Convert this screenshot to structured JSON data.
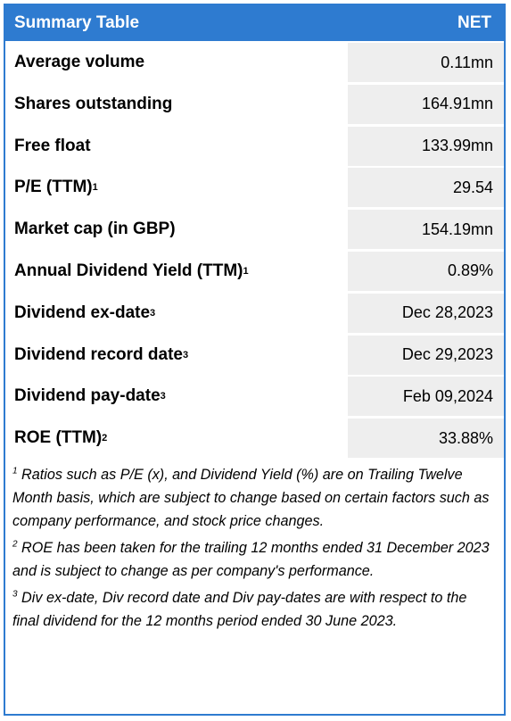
{
  "header": {
    "title": "Summary Table",
    "ticker": "NET"
  },
  "rows": [
    {
      "label": "Average volume",
      "sup": "",
      "value": "0.11mn"
    },
    {
      "label": "Shares outstanding",
      "sup": "",
      "value": "164.91mn"
    },
    {
      "label": "Free float",
      "sup": "",
      "value": "133.99mn"
    },
    {
      "label": "P/E (TTM)",
      "sup": "1",
      "value": "29.54"
    },
    {
      "label": "Market cap (in GBP)",
      "sup": "",
      "value": "154.19mn"
    },
    {
      "label": "Annual Dividend Yield (TTM)",
      "sup": "1",
      "value": "0.89%"
    },
    {
      "label": "Dividend ex-date",
      "sup": "3",
      "value": "Dec 28,2023"
    },
    {
      "label": "Dividend record date",
      "sup": "3",
      "value": "Dec 29,2023"
    },
    {
      "label": "Dividend pay-date",
      "sup": "3",
      "value": "Feb 09,2024"
    },
    {
      "label": "ROE (TTM)",
      "sup": "2",
      "value": "33.88%"
    }
  ],
  "notes": [
    {
      "sup": "1",
      "text": " Ratios such as P/E (x), and Dividend Yield (%) are on Trailing Twelve Month basis, which are subject to change based on certain factors such as company performance, and stock price changes."
    },
    {
      "sup": "2",
      "text": " ROE has been taken for the trailing 12 months ended 31 December 2023 and is subject to change as per company's performance."
    },
    {
      "sup": "3",
      "text": " Div ex-date, Div record date and Div pay-dates are with respect to the final dividend for the 12 months period ended 30 June 2023."
    }
  ]
}
